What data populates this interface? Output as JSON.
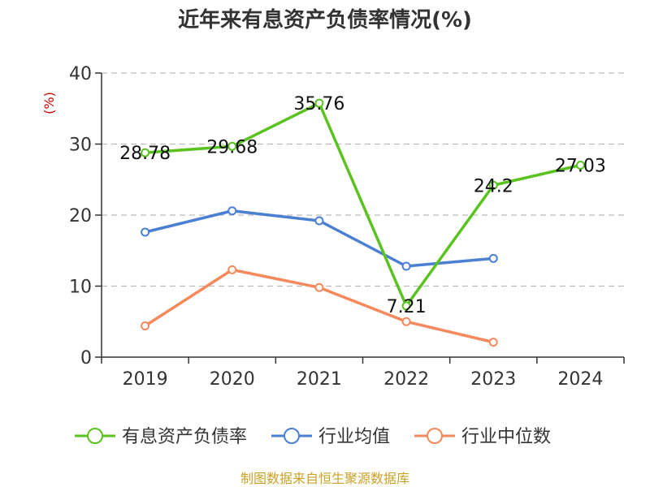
{
  "chart_data": {
    "type": "line",
    "title": "近年来有息资产负债率情况(%)",
    "ylabel": "(%)",
    "xlabel": "",
    "categories": [
      "2019",
      "2020",
      "2021",
      "2022",
      "2023",
      "2024"
    ],
    "ylim": [
      0,
      40
    ],
    "yticks": [
      0,
      10,
      20,
      30,
      40
    ],
    "grid": true,
    "legend_position": "bottom",
    "series": [
      {
        "name": "有息资产负债率",
        "color": "#5ac31f",
        "labeled": true,
        "values": [
          28.78,
          29.68,
          35.76,
          7.21,
          24.2,
          27.03
        ]
      },
      {
        "name": "行业均值",
        "color": "#4a7fd4",
        "labeled": false,
        "values": [
          17.6,
          20.6,
          19.2,
          12.8,
          13.9,
          null
        ]
      },
      {
        "name": "行业中位数",
        "color": "#f5895c",
        "labeled": false,
        "values": [
          4.4,
          12.3,
          9.8,
          5.0,
          2.1,
          null
        ]
      }
    ]
  },
  "colors": {
    "ylabel": "#cc0000",
    "source": "#c9a227",
    "grid": "#bbbbbb",
    "axis": "#333333"
  },
  "source_text": "制图数据来自恒生聚源数据库"
}
